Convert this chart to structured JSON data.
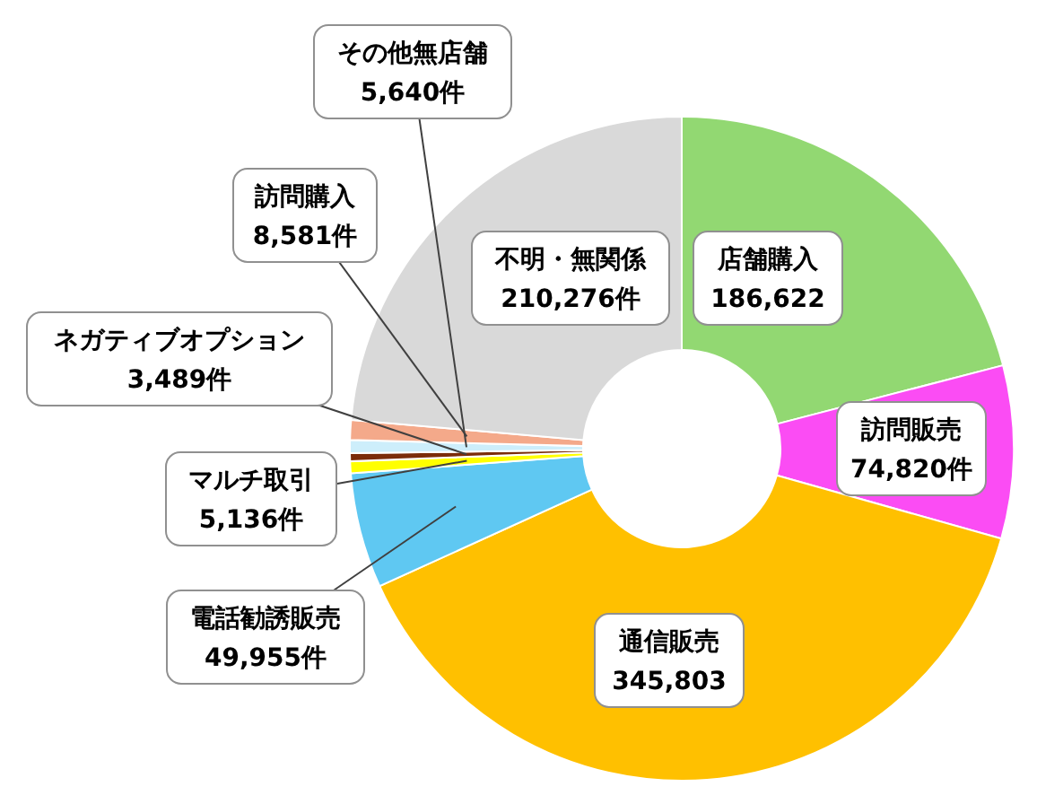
{
  "chart_data": {
    "type": "donut",
    "categories": [
      "店舗購入",
      "訪問販売",
      "通信販売",
      "電話勧誘販売",
      "マルチ取引",
      "ネガティブオプション",
      "その他無店舗",
      "訪問購入",
      "不明・無関係"
    ],
    "values": [
      186622,
      74820,
      345803,
      49955,
      5136,
      3489,
      5640,
      8581,
      210276
    ],
    "value_labels": [
      "186,622",
      "74,820件",
      "345,803",
      "49,955件",
      "5,136件",
      "3,489件",
      "5,640件",
      "8,581件",
      "210,276件"
    ],
    "colors": [
      "#92d872",
      "#fb4cf4",
      "#ffc000",
      "#5fc8f2",
      "#ffff00",
      "#7b2c0a",
      "#cdeefb",
      "#f4a98a",
      "#d9d9d9"
    ]
  }
}
